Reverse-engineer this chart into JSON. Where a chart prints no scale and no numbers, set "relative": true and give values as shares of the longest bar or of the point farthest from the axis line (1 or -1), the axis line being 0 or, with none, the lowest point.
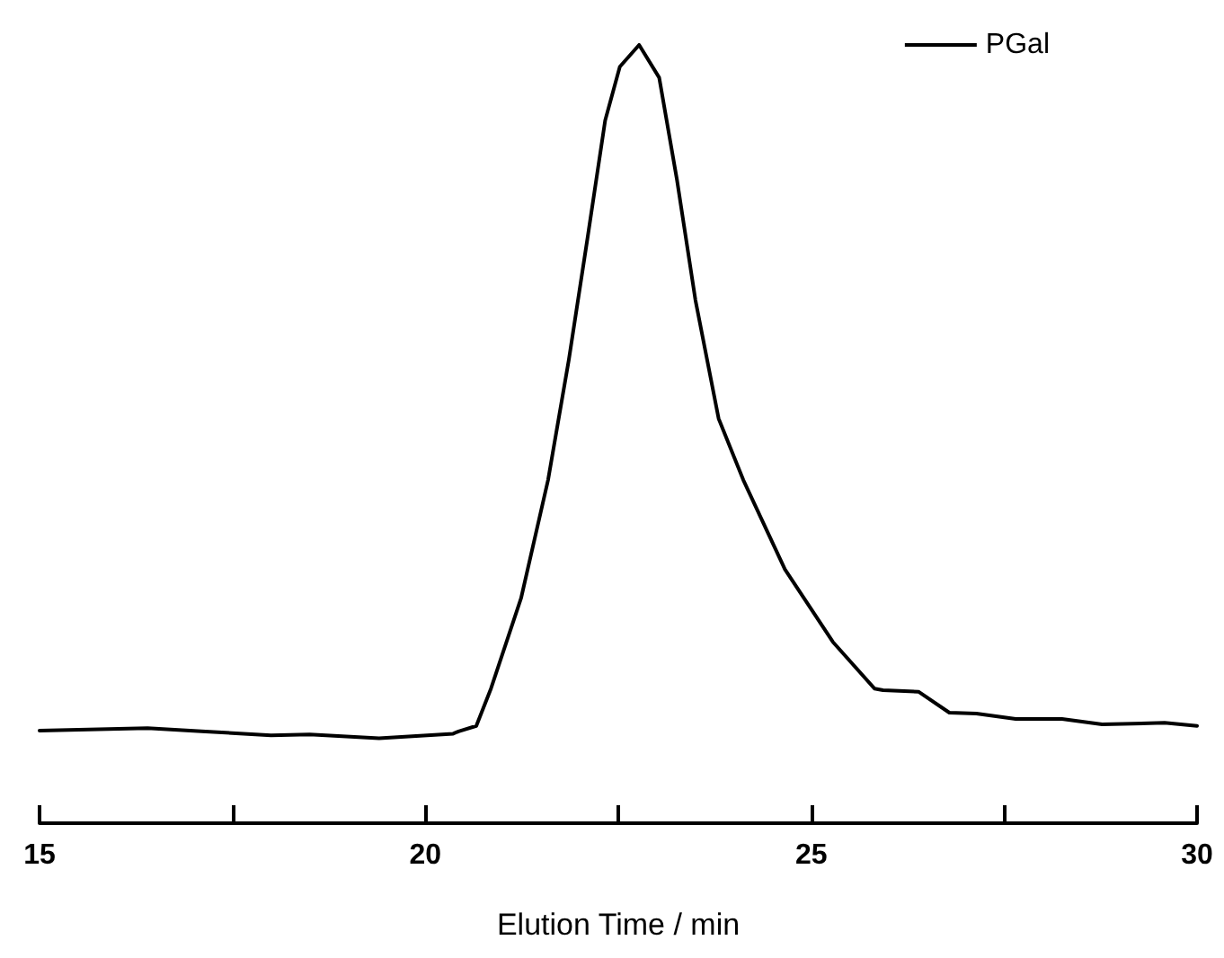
{
  "chart_data": {
    "type": "line",
    "relative": true,
    "xlabel": "Elution Time / min",
    "xlim": [
      15,
      30
    ],
    "xticks": [
      15,
      {
        "value": 17.5,
        "label": null
      },
      20,
      {
        "value": 22.5,
        "label": null
      },
      25,
      {
        "value": 27.5,
        "label": null
      },
      30
    ],
    "legend": "top right",
    "grid": false,
    "marker": "none",
    "line_style": "solid",
    "series": [
      {
        "name": "PGal",
        "color": "#000000",
        "x": [
          15,
          16.4,
          17.1,
          18.0,
          18.5,
          19.4,
          20.36,
          20.43,
          20.66,
          20.85,
          21.24,
          21.59,
          21.86,
          22.1,
          22.33,
          22.52,
          22.77,
          23.03,
          23.26,
          23.5,
          23.8,
          24.12,
          24.66,
          25.28,
          25.82,
          25.93,
          26.39,
          26.79,
          27.14,
          27.65,
          28.25,
          28.77,
          29.58,
          30
        ],
        "values": [
          0.119,
          0.122,
          0.118,
          0.113,
          0.114,
          0.109,
          0.115,
          0.118,
          0.125,
          0.173,
          0.289,
          0.441,
          0.596,
          0.751,
          0.903,
          0.972,
          1,
          0.958,
          0.827,
          0.672,
          0.52,
          0.441,
          0.326,
          0.233,
          0.173,
          0.171,
          0.169,
          0.142,
          0.141,
          0.134,
          0.134,
          0.127,
          0.129,
          0.125
        ]
      }
    ]
  }
}
